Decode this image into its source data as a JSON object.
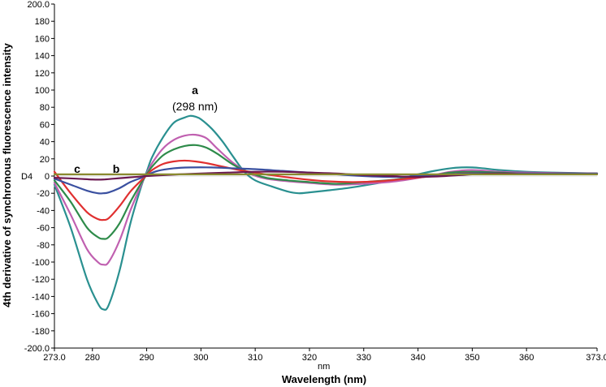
{
  "chart_data": {
    "type": "line",
    "title": "",
    "xlabel": "Wavelength (nm)",
    "ylabel": "4th derivative of synchronous fluorescence intensity",
    "xlim": [
      273.0,
      373.0
    ],
    "ylim": [
      -200.0,
      200.0
    ],
    "x_ticks": [
      "273.0",
      "280",
      "290",
      "300",
      "310",
      "320",
      "330",
      "340",
      "350",
      "360",
      "373.0"
    ],
    "y_ticks": [
      "200.0",
      "180",
      "160",
      "140",
      "120",
      "100",
      "80",
      "60",
      "40",
      "20",
      "0",
      "-20",
      "-40",
      "-60",
      "-80",
      "-100",
      "-120",
      "-140",
      "-160",
      "-180",
      "-200.0"
    ],
    "grid": false,
    "legend": "none",
    "annotations": {
      "a": "a",
      "a_detail": "(298 nm)",
      "b": "b",
      "c": "c",
      "d4": "D4",
      "nm": "nm"
    },
    "series": [
      {
        "name": "teal",
        "color": "#2a9090",
        "x": [
          273,
          276,
          279,
          281,
          282,
          283,
          285,
          287,
          289,
          290,
          291,
          293,
          295,
          297,
          298,
          299,
          300,
          302,
          304,
          306,
          308,
          310,
          313,
          316,
          318,
          320,
          323,
          327,
          331,
          336,
          340,
          343,
          346,
          348,
          350,
          352,
          355,
          360,
          365,
          373
        ],
        "y": [
          -10,
          -60,
          -120,
          -148,
          -155,
          -150,
          -110,
          -55,
          -12,
          5,
          22,
          45,
          62,
          68,
          70,
          69,
          66,
          55,
          40,
          22,
          5,
          -5,
          -12,
          -18,
          -20,
          -19,
          -17,
          -14,
          -10,
          -4,
          2,
          6,
          9,
          10,
          10,
          9,
          7,
          5,
          4,
          3
        ]
      },
      {
        "name": "magenta",
        "color": "#c060b0",
        "x": [
          273,
          276,
          279,
          281,
          282,
          283,
          285,
          287,
          289,
          290,
          291,
          293,
          295,
          297,
          299,
          301,
          303,
          306,
          309,
          312,
          316,
          320,
          325,
          330,
          336,
          342,
          346,
          350,
          355,
          360,
          373
        ],
        "y": [
          -8,
          -45,
          -85,
          -100,
          -103,
          -100,
          -75,
          -40,
          -10,
          3,
          15,
          32,
          42,
          47,
          48,
          44,
          32,
          15,
          3,
          -3,
          -6,
          -8,
          -10,
          -9,
          -6,
          0,
          5,
          7,
          5,
          4,
          3
        ]
      },
      {
        "name": "green",
        "color": "#2e8b4a",
        "x": [
          273,
          276,
          279,
          281,
          282,
          283,
          285,
          287,
          289,
          290,
          291,
          293,
          295,
          297,
          299,
          301,
          303,
          306,
          309,
          312,
          316,
          320,
          325,
          330,
          336,
          342,
          346,
          350,
          355,
          360,
          373
        ],
        "y": [
          -5,
          -30,
          -60,
          -71,
          -73,
          -71,
          -55,
          -30,
          -8,
          2,
          11,
          24,
          31,
          35,
          36,
          33,
          26,
          13,
          4,
          -2,
          -5,
          -7,
          -9,
          -7,
          -4,
          0,
          4,
          5,
          4,
          3,
          3
        ]
      },
      {
        "name": "red",
        "color": "#e03030",
        "x": [
          273,
          276,
          279,
          281,
          282,
          283,
          285,
          287,
          289,
          290,
          291,
          293,
          295,
          297,
          299,
          301,
          304,
          307,
          310,
          313,
          318,
          323,
          328,
          333,
          338,
          343,
          348,
          353,
          360,
          373
        ],
        "y": [
          5,
          -20,
          -42,
          -50,
          -51,
          -49,
          -35,
          -18,
          -5,
          1,
          7,
          14,
          17,
          18,
          17,
          15,
          11,
          7,
          4,
          1,
          -3,
          -6,
          -7,
          -6,
          -3,
          0,
          3,
          3,
          3,
          3
        ]
      },
      {
        "name": "blue",
        "color": "#3a50a0",
        "x": [
          273,
          276,
          279,
          281,
          282,
          283,
          285,
          287,
          289,
          290,
          292,
          295,
          298,
          302,
          306,
          310,
          315,
          320,
          325,
          330,
          335,
          340,
          345,
          350,
          355,
          360,
          373
        ],
        "y": [
          -3,
          -10,
          -17,
          -20,
          -20,
          -19,
          -14,
          -7,
          -2,
          1,
          6,
          9,
          10,
          10,
          9,
          8,
          6,
          4,
          2,
          0,
          -1,
          0,
          2,
          3,
          3,
          3,
          3
        ]
      },
      {
        "name": "dark purple",
        "color": "#6a1850",
        "x": [
          273,
          277,
          280,
          282,
          284,
          286,
          288,
          290,
          293,
          296,
          300,
          305,
          310,
          315,
          320,
          325,
          330,
          335,
          340,
          345,
          350,
          355,
          360,
          365,
          373
        ],
        "y": [
          -2,
          -3,
          -4,
          -4,
          -3,
          -2,
          -1,
          0,
          1,
          2,
          3,
          4,
          5,
          5,
          4,
          3,
          1,
          0,
          -1,
          0,
          2,
          3,
          2,
          2,
          2
        ]
      },
      {
        "name": "olive",
        "color": "#8a8a30",
        "x": [
          273,
          290,
          373
        ],
        "y": [
          2,
          2,
          2
        ]
      }
    ]
  }
}
